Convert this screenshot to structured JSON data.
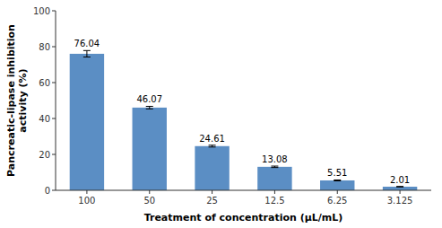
{
  "chart_data": {
    "type": "bar",
    "categories": [
      "100",
      "50",
      "25",
      "12.5",
      "6.25",
      "3.125"
    ],
    "values": [
      76.04,
      46.07,
      24.61,
      13.08,
      5.51,
      2.01
    ],
    "errors": [
      1.8,
      0.7,
      0.5,
      0.4,
      0.25,
      0.15
    ],
    "color": "#5b8ec4",
    "xlabel": "Treatment of concentration (μL/mL)",
    "ylabel": "Pancreatic-lipase inhibition\nactivity (%)",
    "ylim": [
      0,
      100
    ],
    "yticks": [
      0,
      20,
      40,
      60,
      80,
      100
    ],
    "grid": false,
    "data_labels": true
  }
}
